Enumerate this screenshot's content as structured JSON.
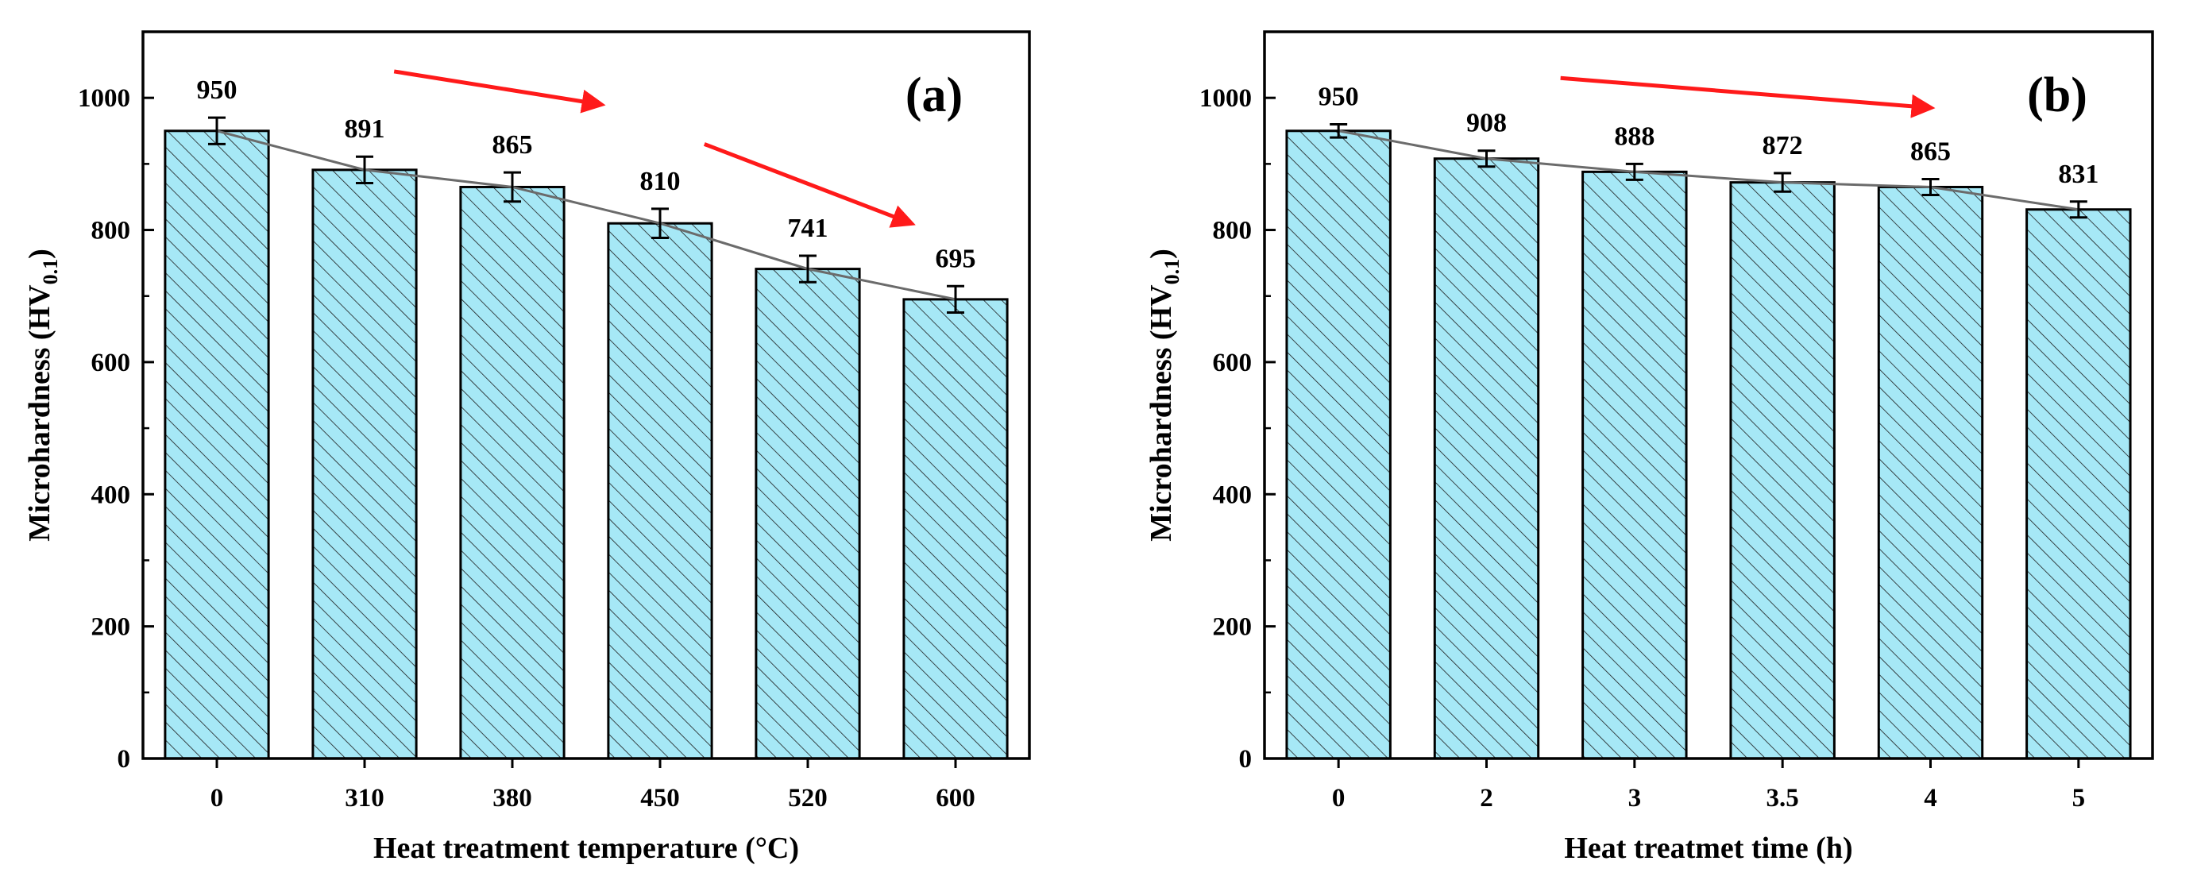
{
  "chart_data": [
    {
      "type": "bar",
      "panel_label": "(a)",
      "title": "",
      "xlabel": "Heat treatment temperature (°C)",
      "ylabel": {
        "main": "Microhardness (HV",
        "subscript": "0.1",
        "close": ")"
      },
      "categories": [
        "0",
        "310",
        "380",
        "450",
        "520",
        "600"
      ],
      "values": [
        950,
        891,
        865,
        810,
        741,
        695
      ],
      "value_labels": [
        "950",
        "891",
        "865",
        "810",
        "741",
        "695"
      ],
      "errors": [
        20,
        20,
        22,
        22,
        20,
        20
      ],
      "ylim": [
        0,
        1100
      ],
      "yticks": [
        0,
        200,
        400,
        600,
        800,
        1000
      ],
      "trend_arrows": [
        {
          "from": [
            1.2,
            1040
          ],
          "to": [
            2.6,
            990
          ]
        },
        {
          "from": [
            3.3,
            930
          ],
          "to": [
            4.7,
            810
          ]
        }
      ]
    },
    {
      "type": "bar",
      "panel_label": "(b)",
      "title": "",
      "xlabel": "Heat treatmet time (h)",
      "ylabel": {
        "main": "Microhardness (HV",
        "subscript": "0.1",
        "close": ")"
      },
      "categories": [
        "0",
        "2",
        "3",
        "3.5",
        "4",
        "5"
      ],
      "values": [
        950,
        908,
        888,
        872,
        865,
        831
      ],
      "value_labels": [
        "950",
        "908",
        "888",
        "872",
        "865",
        "831"
      ],
      "errors": [
        10,
        12,
        12,
        14,
        12,
        12
      ],
      "ylim": [
        0,
        1100
      ],
      "yticks": [
        0,
        200,
        400,
        600,
        800,
        1000
      ],
      "trend_arrows": [
        {
          "from": [
            1.5,
            1030
          ],
          "to": [
            4.0,
            985
          ]
        }
      ]
    }
  ],
  "colors": {
    "bar_fill": "#a6e8f6",
    "bar_hatch": "#1c1c1c",
    "bar_edge": "#000000",
    "trend_line": "#6b6b6b",
    "arrow": "#ff1a1a"
  }
}
